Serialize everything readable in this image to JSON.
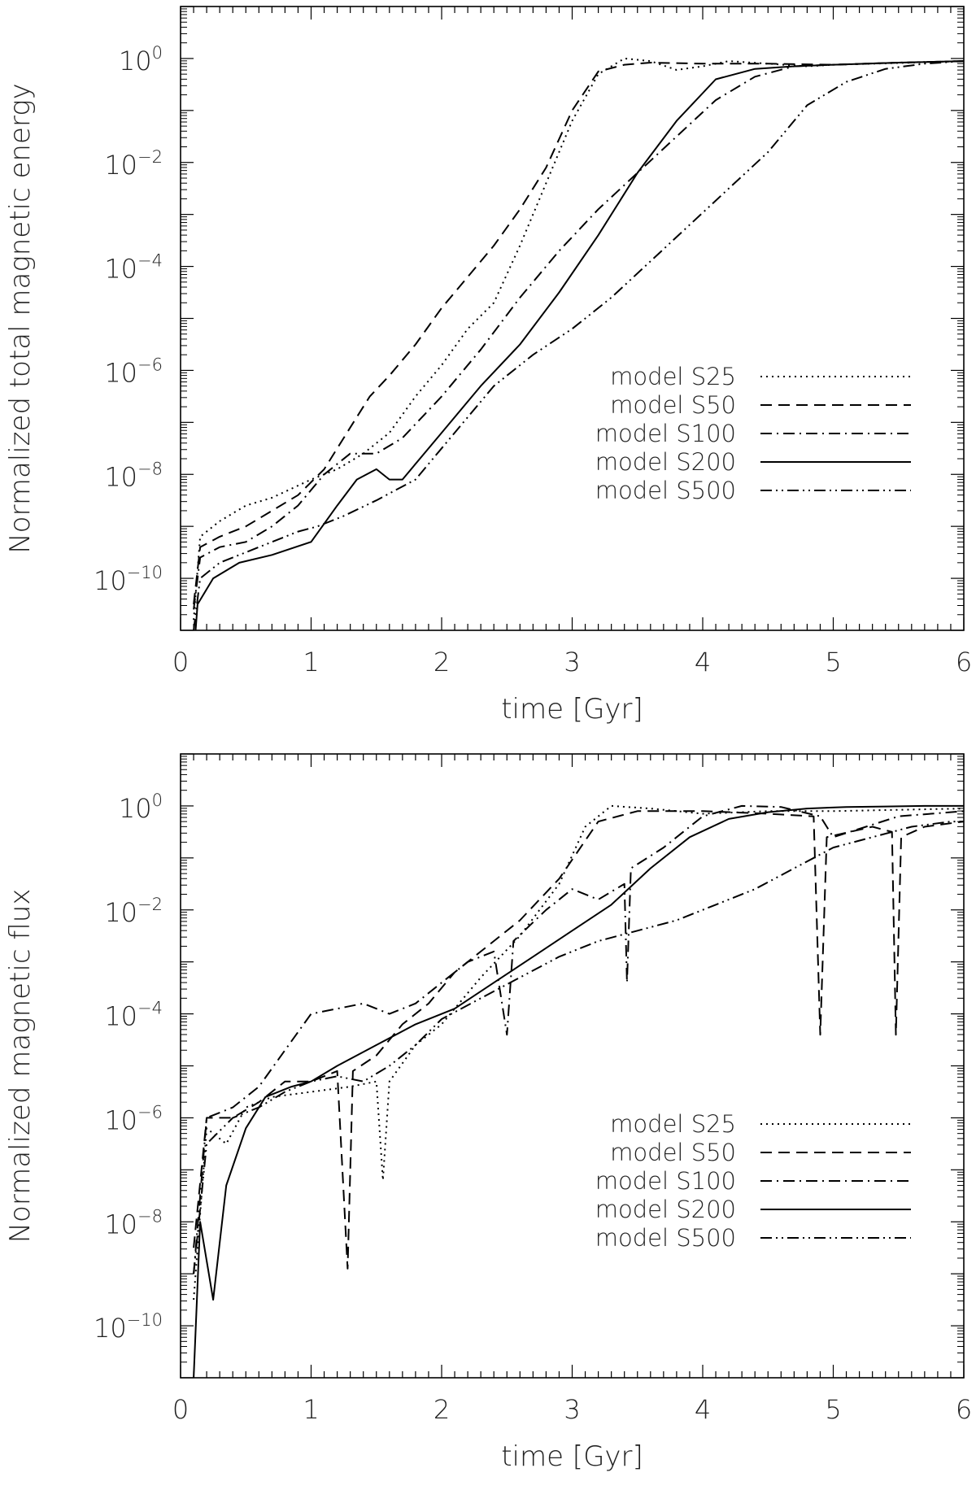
{
  "chart_data": [
    {
      "type": "line",
      "title": "",
      "xlabel": "time [Gyr]",
      "ylabel": "Normalized total magnetic energy",
      "xlim": [
        0,
        6
      ],
      "ylim_exp": [
        -11,
        1
      ],
      "yscale": "log",
      "x_ticks": [
        "0",
        "1",
        "2",
        "3",
        "4",
        "5",
        "6"
      ],
      "y_tick_exponents": [
        "-10",
        "-8",
        "-6",
        "-4",
        "-2",
        "0"
      ],
      "y_tick_base": "10",
      "legend_position": "bottom-right",
      "series": [
        {
          "name": "model S25",
          "dash": "dotted",
          "points": [
            [
              0.1,
              -10.8
            ],
            [
              0.15,
              -9.2
            ],
            [
              0.3,
              -8.9
            ],
            [
              0.5,
              -8.6
            ],
            [
              0.7,
              -8.45
            ],
            [
              1.0,
              -8.1
            ],
            [
              1.2,
              -7.9
            ],
            [
              1.4,
              -7.6
            ],
            [
              1.6,
              -7.2
            ],
            [
              1.8,
              -6.5
            ],
            [
              2.0,
              -5.9
            ],
            [
              2.2,
              -5.2
            ],
            [
              2.4,
              -4.7
            ],
            [
              2.6,
              -3.6
            ],
            [
              2.8,
              -2.4
            ],
            [
              3.0,
              -1.2
            ],
            [
              3.2,
              -0.3
            ],
            [
              3.4,
              0.0
            ],
            [
              3.6,
              -0.05
            ],
            [
              3.8,
              -0.22
            ],
            [
              4.0,
              -0.15
            ],
            [
              4.2,
              -0.05
            ],
            [
              4.5,
              -0.1
            ],
            [
              4.8,
              -0.15
            ],
            [
              5.0,
              -0.12
            ],
            [
              5.3,
              -0.1
            ],
            [
              5.6,
              -0.08
            ],
            [
              6.0,
              -0.05
            ]
          ]
        },
        {
          "name": "model S50",
          "dash": "dashed",
          "points": [
            [
              0.1,
              -10.5
            ],
            [
              0.15,
              -9.4
            ],
            [
              0.3,
              -9.2
            ],
            [
              0.5,
              -9.0
            ],
            [
              0.7,
              -8.7
            ],
            [
              0.9,
              -8.4
            ],
            [
              1.1,
              -7.9
            ],
            [
              1.3,
              -7.1
            ],
            [
              1.45,
              -6.5
            ],
            [
              1.6,
              -6.1
            ],
            [
              1.8,
              -5.5
            ],
            [
              2.0,
              -4.8
            ],
            [
              2.2,
              -4.2
            ],
            [
              2.4,
              -3.6
            ],
            [
              2.6,
              -2.9
            ],
            [
              2.8,
              -2.1
            ],
            [
              3.0,
              -1.0
            ],
            [
              3.2,
              -0.25
            ],
            [
              3.4,
              -0.12
            ],
            [
              3.6,
              -0.08
            ],
            [
              4.0,
              -0.1
            ],
            [
              4.5,
              -0.1
            ],
            [
              5.0,
              -0.12
            ],
            [
              5.5,
              -0.08
            ],
            [
              6.0,
              -0.05
            ]
          ]
        },
        {
          "name": "model S100",
          "dash": "dashdot",
          "points": [
            [
              0.1,
              -10.6
            ],
            [
              0.15,
              -9.6
            ],
            [
              0.3,
              -9.4
            ],
            [
              0.5,
              -9.3
            ],
            [
              0.7,
              -9.0
            ],
            [
              0.9,
              -8.6
            ],
            [
              1.1,
              -8.0
            ],
            [
              1.3,
              -7.6
            ],
            [
              1.5,
              -7.6
            ],
            [
              1.7,
              -7.3
            ],
            [
              2.0,
              -6.5
            ],
            [
              2.3,
              -5.6
            ],
            [
              2.6,
              -4.6
            ],
            [
              2.9,
              -3.7
            ],
            [
              3.2,
              -2.9
            ],
            [
              3.5,
              -2.2
            ],
            [
              3.8,
              -1.5
            ],
            [
              4.1,
              -0.8
            ],
            [
              4.4,
              -0.35
            ],
            [
              4.7,
              -0.15
            ],
            [
              5.0,
              -0.12
            ],
            [
              5.5,
              -0.08
            ],
            [
              6.0,
              -0.05
            ]
          ]
        },
        {
          "name": "model S200",
          "dash": "solid",
          "points": [
            [
              0.1,
              -11.5
            ],
            [
              0.13,
              -10.5
            ],
            [
              0.25,
              -10.0
            ],
            [
              0.45,
              -9.7
            ],
            [
              0.7,
              -9.55
            ],
            [
              1.0,
              -9.3
            ],
            [
              1.2,
              -8.6
            ],
            [
              1.35,
              -8.1
            ],
            [
              1.5,
              -7.9
            ],
            [
              1.6,
              -8.1
            ],
            [
              1.7,
              -8.1
            ],
            [
              2.0,
              -7.2
            ],
            [
              2.3,
              -6.3
            ],
            [
              2.6,
              -5.5
            ],
            [
              2.9,
              -4.5
            ],
            [
              3.2,
              -3.4
            ],
            [
              3.5,
              -2.2
            ],
            [
              3.8,
              -1.2
            ],
            [
              4.1,
              -0.4
            ],
            [
              4.4,
              -0.2
            ],
            [
              4.7,
              -0.15
            ],
            [
              5.0,
              -0.12
            ],
            [
              5.5,
              -0.08
            ],
            [
              6.0,
              -0.05
            ]
          ]
        },
        {
          "name": "model S500",
          "dash": "dashdotdot",
          "points": [
            [
              0.1,
              -11.0
            ],
            [
              0.15,
              -10.0
            ],
            [
              0.3,
              -9.7
            ],
            [
              0.5,
              -9.5
            ],
            [
              0.7,
              -9.3
            ],
            [
              0.9,
              -9.1
            ],
            [
              1.05,
              -9.0
            ],
            [
              1.25,
              -8.8
            ],
            [
              1.5,
              -8.5
            ],
            [
              1.8,
              -8.1
            ],
            [
              2.1,
              -7.2
            ],
            [
              2.4,
              -6.3
            ],
            [
              2.7,
              -5.7
            ],
            [
              3.0,
              -5.2
            ],
            [
              3.3,
              -4.6
            ],
            [
              3.6,
              -3.9
            ],
            [
              3.9,
              -3.2
            ],
            [
              4.2,
              -2.5
            ],
            [
              4.5,
              -1.8
            ],
            [
              4.8,
              -0.9
            ],
            [
              5.1,
              -0.45
            ],
            [
              5.4,
              -0.2
            ],
            [
              5.7,
              -0.1
            ],
            [
              6.0,
              -0.05
            ]
          ]
        }
      ]
    },
    {
      "type": "line",
      "title": "",
      "xlabel": "time [Gyr]",
      "ylabel": "Normalized magnetic flux",
      "xlim": [
        0,
        6
      ],
      "ylim_exp": [
        -11,
        1
      ],
      "yscale": "log",
      "x_ticks": [
        "0",
        "1",
        "2",
        "3",
        "4",
        "5",
        "6"
      ],
      "y_tick_exponents": [
        "-10",
        "-8",
        "-6",
        "-4",
        "-2",
        "0"
      ],
      "y_tick_base": "10",
      "legend_position": "bottom-right",
      "series": [
        {
          "name": "model S25",
          "dash": "dotted",
          "points": [
            [
              0.1,
              -9.5
            ],
            [
              0.2,
              -6.2
            ],
            [
              0.35,
              -6.5
            ],
            [
              0.5,
              -5.8
            ],
            [
              0.7,
              -5.6
            ],
            [
              1.0,
              -5.5
            ],
            [
              1.3,
              -5.4
            ],
            [
              1.5,
              -5.3
            ],
            [
              1.55,
              -7.2
            ],
            [
              1.6,
              -5.3
            ],
            [
              1.8,
              -4.6
            ],
            [
              2.0,
              -4.2
            ],
            [
              2.3,
              -3.3
            ],
            [
              2.6,
              -2.5
            ],
            [
              2.9,
              -1.5
            ],
            [
              3.1,
              -0.4
            ],
            [
              3.3,
              0.0
            ],
            [
              3.6,
              -0.05
            ],
            [
              4.0,
              -0.15
            ],
            [
              4.5,
              -0.1
            ],
            [
              5.0,
              -0.1
            ],
            [
              6.0,
              -0.05
            ]
          ]
        },
        {
          "name": "model S50",
          "dash": "dashed",
          "points": [
            [
              0.1,
              -8.5
            ],
            [
              0.2,
              -6.0
            ],
            [
              0.4,
              -6.0
            ],
            [
              0.6,
              -5.7
            ],
            [
              0.8,
              -5.3
            ],
            [
              1.0,
              -5.3
            ],
            [
              1.2,
              -5.1
            ],
            [
              1.28,
              -8.9
            ],
            [
              1.32,
              -5.1
            ],
            [
              1.5,
              -4.8
            ],
            [
              1.7,
              -4.2
            ],
            [
              1.9,
              -3.8
            ],
            [
              2.1,
              -3.2
            ],
            [
              2.3,
              -2.8
            ],
            [
              2.6,
              -2.2
            ],
            [
              2.9,
              -1.4
            ],
            [
              3.2,
              -0.3
            ],
            [
              3.5,
              -0.1
            ],
            [
              4.0,
              -0.1
            ],
            [
              4.5,
              -0.15
            ],
            [
              4.85,
              -0.2
            ],
            [
              4.9,
              -4.4
            ],
            [
              4.95,
              -0.6
            ],
            [
              5.3,
              -0.4
            ],
            [
              5.45,
              -0.5
            ],
            [
              5.48,
              -4.4
            ],
            [
              5.52,
              -0.6
            ],
            [
              5.7,
              -0.4
            ],
            [
              6.0,
              -0.3
            ]
          ]
        },
        {
          "name": "model S100",
          "dash": "dashdot",
          "points": [
            [
              0.1,
              -9.0
            ],
            [
              0.2,
              -6.0
            ],
            [
              0.4,
              -5.8
            ],
            [
              0.6,
              -5.4
            ],
            [
              0.8,
              -4.7
            ],
            [
              1.0,
              -4.0
            ],
            [
              1.2,
              -3.9
            ],
            [
              1.4,
              -3.8
            ],
            [
              1.6,
              -4.0
            ],
            [
              1.8,
              -3.8
            ],
            [
              2.0,
              -3.4
            ],
            [
              2.2,
              -3.0
            ],
            [
              2.4,
              -2.8
            ],
            [
              2.5,
              -4.4
            ],
            [
              2.55,
              -2.6
            ],
            [
              2.8,
              -2.0
            ],
            [
              3.0,
              -1.6
            ],
            [
              3.2,
              -1.8
            ],
            [
              3.4,
              -1.5
            ],
            [
              3.42,
              -3.4
            ],
            [
              3.45,
              -1.2
            ],
            [
              3.7,
              -0.8
            ],
            [
              4.0,
              -0.2
            ],
            [
              4.3,
              0.0
            ],
            [
              4.6,
              -0.02
            ],
            [
              4.9,
              -0.2
            ],
            [
              5.0,
              -0.6
            ],
            [
              5.5,
              -0.2
            ],
            [
              6.0,
              -0.1
            ]
          ]
        },
        {
          "name": "model S200",
          "dash": "solid",
          "points": [
            [
              0.1,
              -11.0
            ],
            [
              0.15,
              -8.0
            ],
            [
              0.25,
              -9.5
            ],
            [
              0.35,
              -7.3
            ],
            [
              0.5,
              -6.2
            ],
            [
              0.65,
              -5.6
            ],
            [
              0.85,
              -5.4
            ],
            [
              1.0,
              -5.3
            ],
            [
              1.2,
              -5.0
            ],
            [
              1.5,
              -4.6
            ],
            [
              1.8,
              -4.2
            ],
            [
              2.1,
              -3.9
            ],
            [
              2.4,
              -3.4
            ],
            [
              2.7,
              -2.9
            ],
            [
              3.0,
              -2.4
            ],
            [
              3.3,
              -1.9
            ],
            [
              3.6,
              -1.2
            ],
            [
              3.9,
              -0.6
            ],
            [
              4.2,
              -0.25
            ],
            [
              4.5,
              -0.12
            ],
            [
              4.8,
              -0.05
            ],
            [
              5.1,
              -0.02
            ],
            [
              5.4,
              -0.01
            ],
            [
              5.7,
              0.0
            ],
            [
              6.0,
              0.0
            ]
          ]
        },
        {
          "name": "model S500",
          "dash": "dashdotdot",
          "points": [
            [
              0.1,
              -9.0
            ],
            [
              0.2,
              -6.5
            ],
            [
              0.4,
              -6.0
            ],
            [
              0.6,
              -5.8
            ],
            [
              0.8,
              -5.5
            ],
            [
              1.0,
              -5.3
            ],
            [
              1.2,
              -5.2
            ],
            [
              1.4,
              -5.3
            ],
            [
              1.6,
              -5.0
            ],
            [
              1.8,
              -4.6
            ],
            [
              2.0,
              -4.1
            ],
            [
              2.3,
              -3.7
            ],
            [
              2.6,
              -3.3
            ],
            [
              2.9,
              -2.9
            ],
            [
              3.2,
              -2.6
            ],
            [
              3.5,
              -2.4
            ],
            [
              3.8,
              -2.2
            ],
            [
              4.1,
              -1.9
            ],
            [
              4.4,
              -1.6
            ],
            [
              4.7,
              -1.2
            ],
            [
              5.0,
              -0.8
            ],
            [
              5.3,
              -0.6
            ],
            [
              5.6,
              -0.4
            ],
            [
              5.9,
              -0.3
            ],
            [
              6.0,
              -0.3
            ]
          ]
        }
      ]
    }
  ]
}
